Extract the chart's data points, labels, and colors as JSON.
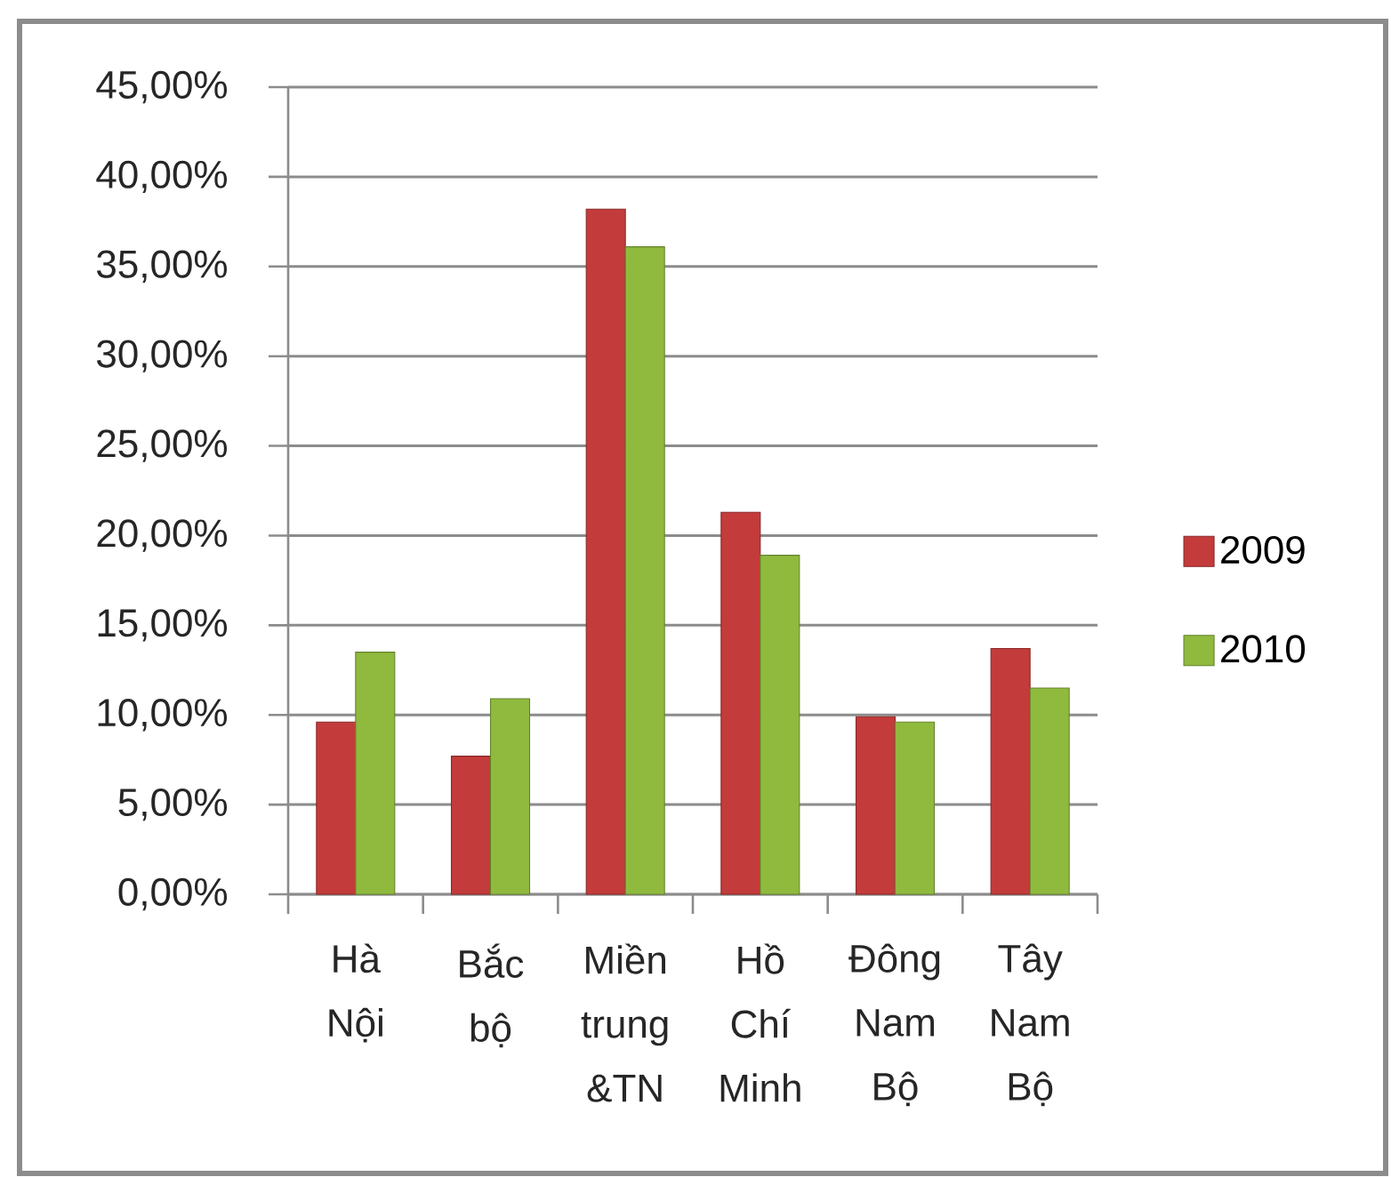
{
  "chart_data": {
    "type": "bar",
    "categories": [
      "Hà Nội",
      "Bắc bộ",
      "Miền trung &TN",
      "Hồ Chí Minh",
      "Đông Nam Bộ",
      "Tây Nam Bộ"
    ],
    "series": [
      {
        "name": "2009",
        "color": "#c33b3b",
        "values": [
          9.6,
          7.7,
          38.2,
          21.3,
          9.9,
          13.7
        ]
      },
      {
        "name": "2010",
        "color": "#8fba3e",
        "values": [
          13.5,
          10.9,
          36.1,
          18.9,
          9.6,
          11.5
        ]
      }
    ],
    "ylim": [
      0,
      45
    ],
    "yticks": [
      {
        "value": 0,
        "label": "0,00%"
      },
      {
        "value": 5,
        "label": "5,00%"
      },
      {
        "value": 10,
        "label": "10,00%"
      },
      {
        "value": 15,
        "label": "15,00%"
      },
      {
        "value": 20,
        "label": "20,00%"
      },
      {
        "value": 25,
        "label": "25,00%"
      },
      {
        "value": 30,
        "label": "30,00%"
      },
      {
        "value": 35,
        "label": "35,00%"
      },
      {
        "value": 40,
        "label": "40,00%"
      },
      {
        "value": 45,
        "label": "45,00%"
      }
    ],
    "grid": "y",
    "legend": "right"
  }
}
